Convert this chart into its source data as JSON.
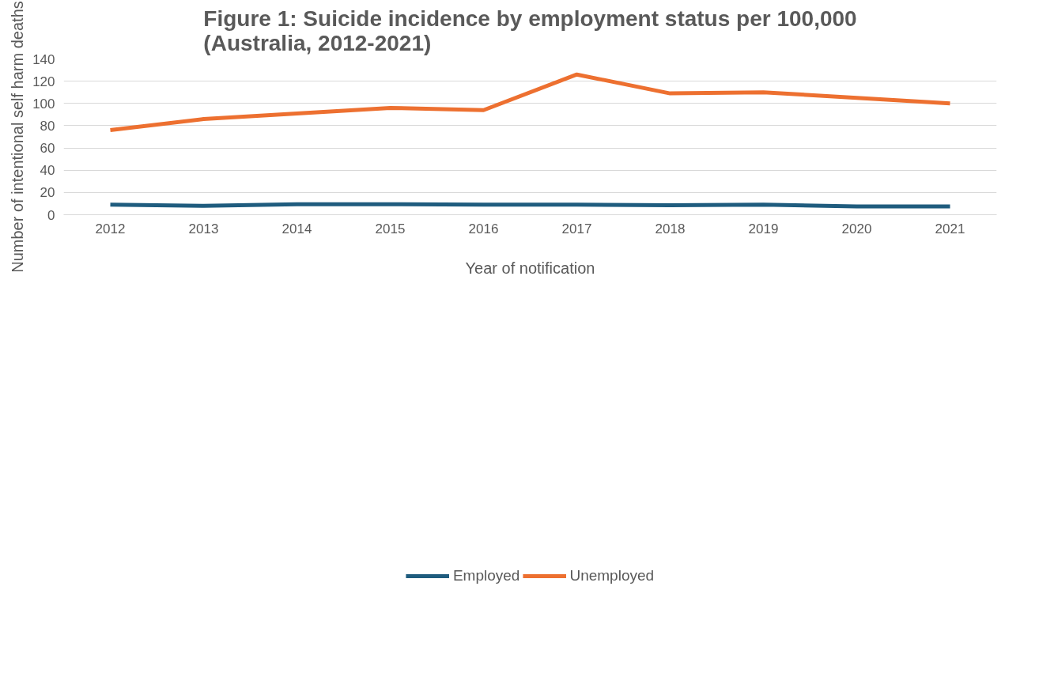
{
  "chart_data": {
    "type": "line",
    "title": "Figure 1: Suicide incidence by employment status per 100,000 (Australia, 2012-2021)",
    "xlabel": "Year of notification",
    "ylabel": "Number of intentional self harm deaths",
    "categories": [
      "2012",
      "2013",
      "2014",
      "2015",
      "2016",
      "2017",
      "2018",
      "2019",
      "2020",
      "2021"
    ],
    "series": [
      {
        "name": "Employed",
        "color": "#1f5c7e",
        "values": [
          9,
          8,
          9.5,
          9.5,
          9,
          9,
          8.5,
          9,
          7.5,
          7.5
        ]
      },
      {
        "name": "Unemployed",
        "color": "#ed7030",
        "values": [
          76,
          86,
          91,
          96,
          94,
          126,
          109,
          110,
          105,
          100
        ]
      }
    ],
    "ylim": [
      0,
      140
    ],
    "yticks": [
      0,
      20,
      40,
      60,
      80,
      100,
      120,
      140
    ],
    "grid": "y",
    "legend": "bottom",
    "marker": "none",
    "line_style": "solid"
  }
}
